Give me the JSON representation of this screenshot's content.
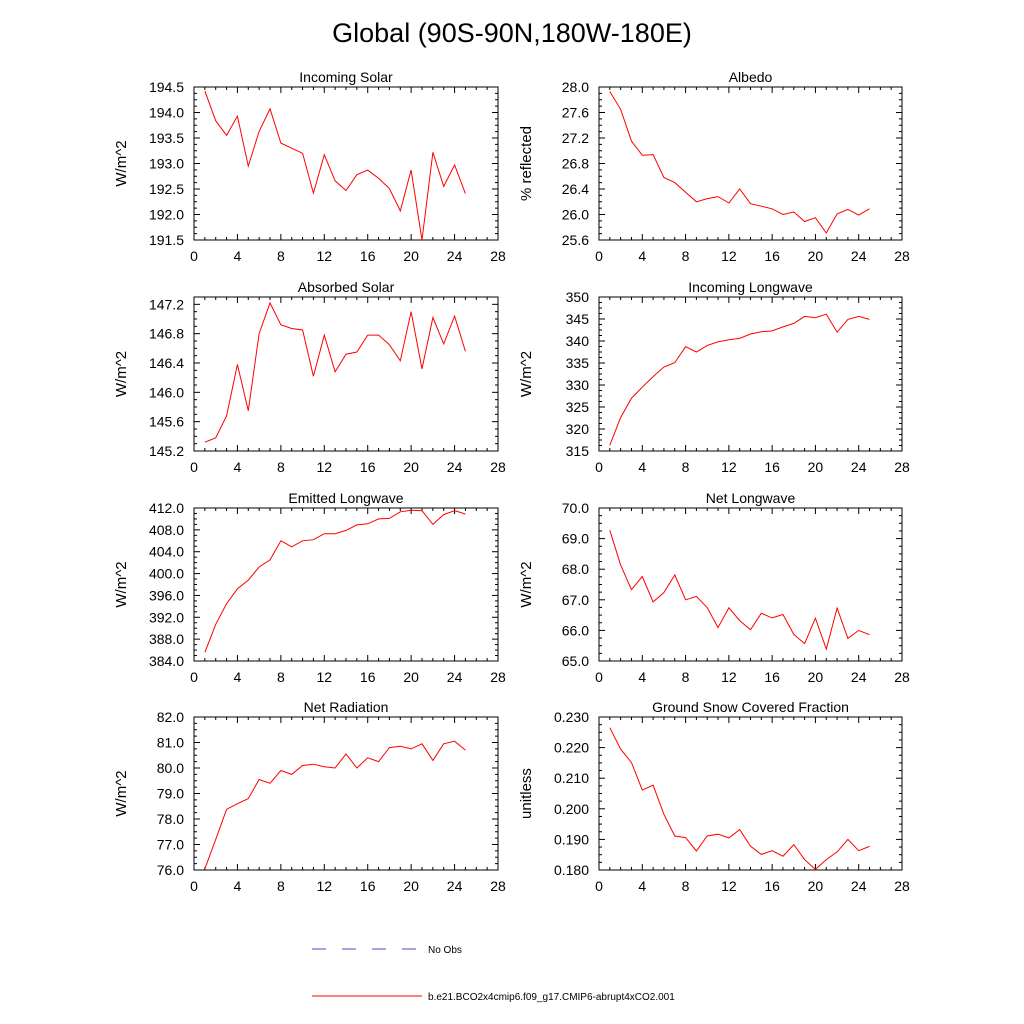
{
  "figure": {
    "title": "Global (90S-90N,180W-180E)",
    "legend": [
      {
        "label": "No Obs",
        "color": "#4b4bcc",
        "style": "dashed"
      },
      {
        "label": "b.e21.BCO2x4cmip6.f09_g17.CMIP6-abrupt4xCO2.001",
        "color": "#ff0000",
        "style": "solid"
      }
    ]
  },
  "chart_data": [
    {
      "type": "line",
      "title": "Incoming Solar",
      "ylabel": "W/m^2",
      "xlabel": "",
      "xlim": [
        0,
        28
      ],
      "xticks": [
        0,
        4,
        8,
        12,
        16,
        20,
        24,
        28
      ],
      "xtick_labels": [
        "0",
        "4",
        "8",
        "12",
        "16",
        "20",
        "24",
        "28"
      ],
      "ylim": [
        191.5,
        194.5
      ],
      "yticks": [
        191.5,
        192.0,
        192.5,
        193.0,
        193.5,
        194.0,
        194.5
      ],
      "ytick_labels": [
        "191.5",
        "192.0",
        "192.5",
        "193.0",
        "193.5",
        "194.0",
        "194.5"
      ],
      "series": [
        {
          "name": "b.e21.BCO2x4cmip6.f09_g17.CMIP6-abrupt4xCO2.001",
          "color": "#ff0000",
          "x": [
            1,
            2,
            3,
            4,
            5,
            6,
            7,
            8,
            9,
            10,
            11,
            12,
            13,
            14,
            15,
            16,
            17,
            18,
            19,
            20,
            21,
            22,
            23,
            24,
            25
          ],
          "values": [
            194.42,
            193.84,
            193.55,
            193.93,
            192.95,
            193.63,
            194.07,
            193.4,
            193.3,
            193.2,
            192.42,
            193.17,
            192.66,
            192.47,
            192.78,
            192.87,
            192.71,
            192.51,
            192.07,
            192.87,
            191.5,
            193.22,
            192.55,
            192.97,
            192.41
          ]
        }
      ]
    },
    {
      "type": "line",
      "title": "Albedo",
      "ylabel": "% reflected",
      "xlabel": "",
      "xlim": [
        0,
        28
      ],
      "xticks": [
        0,
        4,
        8,
        12,
        16,
        20,
        24,
        28
      ],
      "xtick_labels": [
        "0",
        "4",
        "8",
        "12",
        "16",
        "20",
        "24",
        "28"
      ],
      "ylim": [
        25.6,
        28.0
      ],
      "yticks": [
        25.6,
        26.0,
        26.4,
        26.8,
        27.2,
        27.6,
        28.0
      ],
      "ytick_labels": [
        "25.6",
        "26.0",
        "26.4",
        "26.8",
        "27.2",
        "27.6",
        "28.0"
      ],
      "series": [
        {
          "name": "b.e21.BCO2x4cmip6.f09_g17.CMIP6-abrupt4xCO2.001",
          "color": "#ff0000",
          "x": [
            1,
            2,
            3,
            4,
            5,
            6,
            7,
            8,
            9,
            10,
            11,
            12,
            13,
            14,
            15,
            16,
            17,
            18,
            19,
            20,
            21,
            22,
            23,
            24,
            25
          ],
          "values": [
            27.93,
            27.65,
            27.15,
            26.93,
            26.94,
            26.58,
            26.5,
            26.35,
            26.2,
            26.25,
            26.28,
            26.18,
            26.4,
            26.17,
            26.13,
            26.09,
            26.0,
            26.04,
            25.89,
            25.95,
            25.71,
            26.01,
            26.08,
            25.99,
            26.09
          ]
        }
      ]
    },
    {
      "type": "line",
      "title": "Absorbed Solar",
      "ylabel": "W/m^2",
      "xlabel": "",
      "xlim": [
        0,
        28
      ],
      "xticks": [
        0,
        4,
        8,
        12,
        16,
        20,
        24,
        28
      ],
      "xtick_labels": [
        "0",
        "4",
        "8",
        "12",
        "16",
        "20",
        "24",
        "28"
      ],
      "ylim": [
        145.2,
        147.3
      ],
      "yticks": [
        145.2,
        145.6,
        146.0,
        146.4,
        146.8,
        147.2
      ],
      "ytick_labels": [
        "145.2",
        "145.6",
        "146.0",
        "146.4",
        "146.8",
        "147.2"
      ],
      "series": [
        {
          "name": "b.e21.BCO2x4cmip6.f09_g17.CMIP6-abrupt4xCO2.001",
          "color": "#ff0000",
          "x": [
            1,
            2,
            3,
            4,
            5,
            6,
            7,
            8,
            9,
            10,
            11,
            12,
            13,
            14,
            15,
            16,
            17,
            18,
            19,
            20,
            21,
            22,
            23,
            24,
            25
          ],
          "values": [
            145.32,
            145.38,
            145.68,
            146.38,
            145.75,
            146.8,
            147.22,
            146.92,
            146.87,
            146.85,
            146.22,
            146.78,
            146.28,
            146.52,
            146.55,
            146.78,
            146.78,
            146.65,
            146.43,
            147.1,
            146.32,
            147.02,
            146.66,
            147.04,
            146.56
          ]
        }
      ]
    },
    {
      "type": "line",
      "title": "Incoming Longwave",
      "ylabel": "W/m^2",
      "xlabel": "",
      "xlim": [
        0,
        28
      ],
      "xticks": [
        0,
        4,
        8,
        12,
        16,
        20,
        24,
        28
      ],
      "xtick_labels": [
        "0",
        "4",
        "8",
        "12",
        "16",
        "20",
        "24",
        "28"
      ],
      "ylim": [
        315,
        350
      ],
      "yticks": [
        315,
        320,
        325,
        330,
        335,
        340,
        345,
        350
      ],
      "ytick_labels": [
        "315",
        "320",
        "325",
        "330",
        "335",
        "340",
        "345",
        "350"
      ],
      "series": [
        {
          "name": "b.e21.BCO2x4cmip6.f09_g17.CMIP6-abrupt4xCO2.001",
          "color": "#ff0000",
          "x": [
            1,
            2,
            3,
            4,
            5,
            6,
            7,
            8,
            9,
            10,
            11,
            12,
            13,
            14,
            15,
            16,
            17,
            18,
            19,
            20,
            21,
            22,
            23,
            24,
            25
          ],
          "values": [
            316.3,
            322.6,
            327.0,
            329.5,
            331.9,
            334.1,
            335.1,
            338.7,
            337.5,
            339.0,
            339.8,
            340.3,
            340.6,
            341.6,
            342.1,
            342.3,
            343.2,
            344.0,
            345.6,
            345.3,
            346.1,
            342.0,
            344.9,
            345.6,
            344.9
          ]
        }
      ]
    },
    {
      "type": "line",
      "title": "Emitted Longwave",
      "ylabel": "W/m^2",
      "xlabel": "",
      "xlim": [
        0,
        28
      ],
      "xticks": [
        0,
        4,
        8,
        12,
        16,
        20,
        24,
        28
      ],
      "xtick_labels": [
        "0",
        "4",
        "8",
        "12",
        "16",
        "20",
        "24",
        "28"
      ],
      "ylim": [
        384.0,
        412.0
      ],
      "yticks": [
        384.0,
        388.0,
        392.0,
        396.0,
        400.0,
        404.0,
        408.0,
        412.0
      ],
      "ytick_labels": [
        "384.0",
        "388.0",
        "392.0",
        "396.0",
        "400.0",
        "404.0",
        "408.0",
        "412.0"
      ],
      "series": [
        {
          "name": "b.e21.BCO2x4cmip6.f09_g17.CMIP6-abrupt4xCO2.001",
          "color": "#ff0000",
          "x": [
            1,
            2,
            3,
            4,
            5,
            6,
            7,
            8,
            9,
            10,
            11,
            12,
            13,
            14,
            15,
            16,
            17,
            18,
            19,
            20,
            21,
            22,
            23,
            24,
            25
          ],
          "values": [
            385.6,
            390.7,
            394.5,
            397.2,
            398.8,
            401.2,
            402.5,
            406.0,
            404.9,
            406.0,
            406.2,
            407.3,
            407.3,
            407.9,
            408.9,
            409.1,
            410.0,
            410.1,
            411.3,
            411.6,
            411.5,
            409.0,
            410.8,
            411.5,
            410.9
          ]
        }
      ]
    },
    {
      "type": "line",
      "title": "Net Longwave",
      "ylabel": "W/m^2",
      "xlabel": "",
      "xlim": [
        0,
        28
      ],
      "xticks": [
        0,
        4,
        8,
        12,
        16,
        20,
        24,
        28
      ],
      "xtick_labels": [
        "0",
        "4",
        "8",
        "12",
        "16",
        "20",
        "24",
        "28"
      ],
      "ylim": [
        65.0,
        70.0
      ],
      "yticks": [
        65.0,
        66.0,
        67.0,
        68.0,
        69.0,
        70.0
      ],
      "ytick_labels": [
        "65.0",
        "66.0",
        "67.0",
        "68.0",
        "69.0",
        "70.0"
      ],
      "series": [
        {
          "name": "b.e21.BCO2x4cmip6.f09_g17.CMIP6-abrupt4xCO2.001",
          "color": "#ff0000",
          "x": [
            1,
            2,
            3,
            4,
            5,
            6,
            7,
            8,
            9,
            10,
            11,
            12,
            13,
            14,
            15,
            16,
            17,
            18,
            19,
            20,
            21,
            22,
            23,
            24,
            25
          ],
          "values": [
            69.27,
            68.14,
            67.33,
            67.76,
            66.93,
            67.24,
            67.81,
            67.0,
            67.11,
            66.75,
            66.09,
            66.74,
            66.32,
            66.02,
            66.56,
            66.41,
            66.52,
            65.87,
            65.57,
            66.4,
            65.39,
            66.73,
            65.74,
            66.0,
            65.86
          ]
        }
      ]
    },
    {
      "type": "line",
      "title": "Net Radiation",
      "ylabel": "W/m^2",
      "xlabel": "",
      "xlim": [
        0,
        28
      ],
      "xticks": [
        0,
        4,
        8,
        12,
        16,
        20,
        24,
        28
      ],
      "xtick_labels": [
        "0",
        "4",
        "8",
        "12",
        "16",
        "20",
        "24",
        "28"
      ],
      "ylim": [
        76.0,
        82.0
      ],
      "yticks": [
        76.0,
        77.0,
        78.0,
        79.0,
        80.0,
        81.0,
        82.0
      ],
      "ytick_labels": [
        "76.0",
        "77.0",
        "78.0",
        "79.0",
        "80.0",
        "81.0",
        "82.0"
      ],
      "series": [
        {
          "name": "b.e21.BCO2x4cmip6.f09_g17.CMIP6-abrupt4xCO2.001",
          "color": "#ff0000",
          "x": [
            1,
            2,
            3,
            4,
            5,
            6,
            7,
            8,
            9,
            10,
            11,
            12,
            13,
            14,
            15,
            16,
            17,
            18,
            19,
            20,
            21,
            22,
            23,
            24,
            25
          ],
          "values": [
            76.05,
            77.2,
            78.38,
            78.6,
            78.8,
            79.55,
            79.4,
            79.9,
            79.75,
            80.1,
            80.15,
            80.05,
            80.0,
            80.55,
            80.0,
            80.4,
            80.25,
            80.8,
            80.85,
            80.75,
            80.95,
            80.3,
            80.95,
            81.05,
            80.7
          ]
        }
      ]
    },
    {
      "type": "line",
      "title": "Ground Snow Covered Fraction",
      "ylabel": "unitless",
      "xlabel": "",
      "xlim": [
        0,
        28
      ],
      "xticks": [
        0,
        4,
        8,
        12,
        16,
        20,
        24,
        28
      ],
      "xtick_labels": [
        "0",
        "4",
        "8",
        "12",
        "16",
        "20",
        "24",
        "28"
      ],
      "ylim": [
        0.18,
        0.23
      ],
      "yticks": [
        0.18,
        0.19,
        0.2,
        0.21,
        0.22,
        0.23
      ],
      "ytick_labels": [
        "0.180",
        "0.190",
        "0.200",
        "0.210",
        "0.220",
        "0.230"
      ],
      "series": [
        {
          "name": "b.e21.BCO2x4cmip6.f09_g17.CMIP6-abrupt4xCO2.001",
          "color": "#ff0000",
          "x": [
            1,
            2,
            3,
            4,
            5,
            6,
            7,
            8,
            9,
            10,
            11,
            12,
            13,
            14,
            15,
            16,
            17,
            18,
            19,
            20,
            21,
            22,
            23,
            24,
            25
          ],
          "values": [
            0.2265,
            0.2195,
            0.2151,
            0.2061,
            0.2077,
            0.1982,
            0.1911,
            0.1906,
            0.1862,
            0.1911,
            0.1917,
            0.1905,
            0.1932,
            0.1878,
            0.1851,
            0.1863,
            0.1845,
            0.1883,
            0.1834,
            0.1802,
            0.1834,
            0.1859,
            0.19,
            0.1863,
            0.1877
          ]
        }
      ]
    }
  ]
}
